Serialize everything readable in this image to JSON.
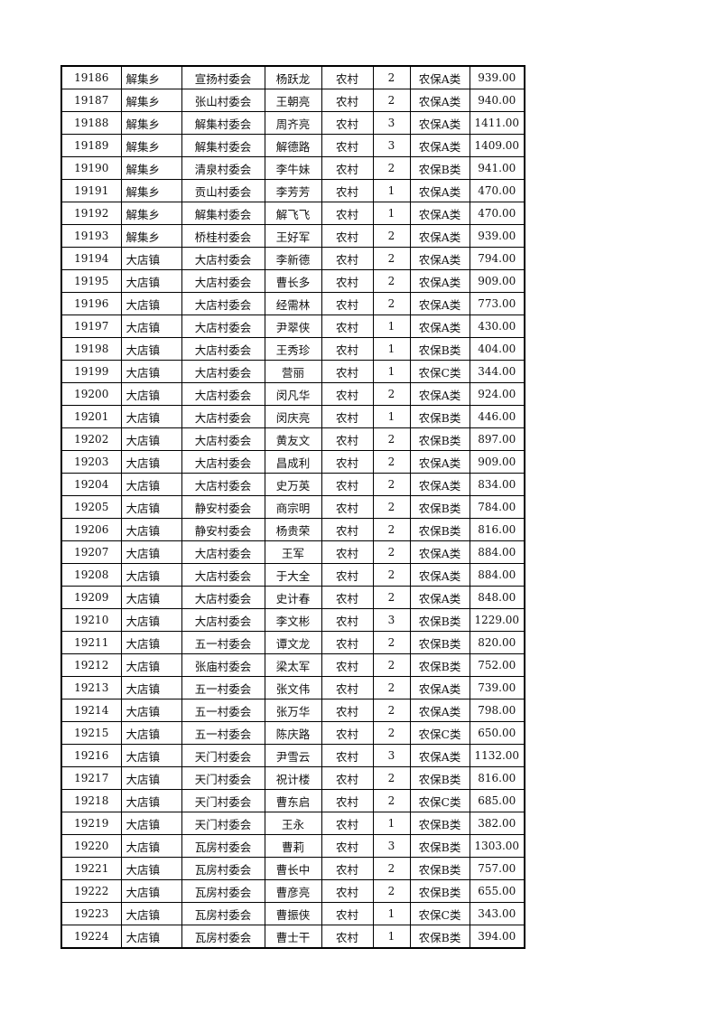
{
  "table": {
    "rows": [
      [
        "19186",
        "解集乡",
        "宣扬村委会",
        "杨跃龙",
        "农村",
        "2",
        "农保A类",
        "939.00"
      ],
      [
        "19187",
        "解集乡",
        "张山村委会",
        "王朝亮",
        "农村",
        "2",
        "农保A类",
        "940.00"
      ],
      [
        "19188",
        "解集乡",
        "解集村委会",
        "周齐亮",
        "农村",
        "3",
        "农保A类",
        "1411.00"
      ],
      [
        "19189",
        "解集乡",
        "解集村委会",
        "解德路",
        "农村",
        "3",
        "农保A类",
        "1409.00"
      ],
      [
        "19190",
        "解集乡",
        "清泉村委会",
        "李牛妹",
        "农村",
        "2",
        "农保B类",
        "941.00"
      ],
      [
        "19191",
        "解集乡",
        "贡山村委会",
        "李芳芳",
        "农村",
        "1",
        "农保A类",
        "470.00"
      ],
      [
        "19192",
        "解集乡",
        "解集村委会",
        "解飞飞",
        "农村",
        "1",
        "农保A类",
        "470.00"
      ],
      [
        "19193",
        "解集乡",
        "桥桂村委会",
        "王好军",
        "农村",
        "2",
        "农保A类",
        "939.00"
      ],
      [
        "19194",
        "大店镇",
        "大店村委会",
        "李新德",
        "农村",
        "2",
        "农保A类",
        "794.00"
      ],
      [
        "19195",
        "大店镇",
        "大店村委会",
        "曹长多",
        "农村",
        "2",
        "农保A类",
        "909.00"
      ],
      [
        "19196",
        "大店镇",
        "大店村委会",
        "经需林",
        "农村",
        "2",
        "农保A类",
        "773.00"
      ],
      [
        "19197",
        "大店镇",
        "大店村委会",
        "尹翠侠",
        "农村",
        "1",
        "农保A类",
        "430.00"
      ],
      [
        "19198",
        "大店镇",
        "大店村委会",
        "王秀珍",
        "农村",
        "1",
        "农保B类",
        "404.00"
      ],
      [
        "19199",
        "大店镇",
        "大店村委会",
        "营丽",
        "农村",
        "1",
        "农保C类",
        "344.00"
      ],
      [
        "19200",
        "大店镇",
        "大店村委会",
        "闵凡华",
        "农村",
        "2",
        "农保A类",
        "924.00"
      ],
      [
        "19201",
        "大店镇",
        "大店村委会",
        "闵庆亮",
        "农村",
        "1",
        "农保B类",
        "446.00"
      ],
      [
        "19202",
        "大店镇",
        "大店村委会",
        "黄友文",
        "农村",
        "2",
        "农保B类",
        "897.00"
      ],
      [
        "19203",
        "大店镇",
        "大店村委会",
        "昌成利",
        "农村",
        "2",
        "农保A类",
        "909.00"
      ],
      [
        "19204",
        "大店镇",
        "大店村委会",
        "史万英",
        "农村",
        "2",
        "农保A类",
        "834.00"
      ],
      [
        "19205",
        "大店镇",
        "静安村委会",
        "商宗明",
        "农村",
        "2",
        "农保B类",
        "784.00"
      ],
      [
        "19206",
        "大店镇",
        "静安村委会",
        "杨贵荣",
        "农村",
        "2",
        "农保B类",
        "816.00"
      ],
      [
        "19207",
        "大店镇",
        "大店村委会",
        "王军",
        "农村",
        "2",
        "农保A类",
        "884.00"
      ],
      [
        "19208",
        "大店镇",
        "大店村委会",
        "于大全",
        "农村",
        "2",
        "农保A类",
        "884.00"
      ],
      [
        "19209",
        "大店镇",
        "大店村委会",
        "史计春",
        "农村",
        "2",
        "农保A类",
        "848.00"
      ],
      [
        "19210",
        "大店镇",
        "大店村委会",
        "李文彬",
        "农村",
        "3",
        "农保B类",
        "1229.00"
      ],
      [
        "19211",
        "大店镇",
        "五一村委会",
        "谭文龙",
        "农村",
        "2",
        "农保B类",
        "820.00"
      ],
      [
        "19212",
        "大店镇",
        "张庙村委会",
        "梁太军",
        "农村",
        "2",
        "农保B类",
        "752.00"
      ],
      [
        "19213",
        "大店镇",
        "五一村委会",
        "张文伟",
        "农村",
        "2",
        "农保A类",
        "739.00"
      ],
      [
        "19214",
        "大店镇",
        "五一村委会",
        "张万华",
        "农村",
        "2",
        "农保A类",
        "798.00"
      ],
      [
        "19215",
        "大店镇",
        "五一村委会",
        "陈庆路",
        "农村",
        "2",
        "农保C类",
        "650.00"
      ],
      [
        "19216",
        "大店镇",
        "天门村委会",
        "尹雪云",
        "农村",
        "3",
        "农保A类",
        "1132.00"
      ],
      [
        "19217",
        "大店镇",
        "天门村委会",
        "祝计楼",
        "农村",
        "2",
        "农保B类",
        "816.00"
      ],
      [
        "19218",
        "大店镇",
        "天门村委会",
        "曹东启",
        "农村",
        "2",
        "农保C类",
        "685.00"
      ],
      [
        "19219",
        "大店镇",
        "天门村委会",
        "王永",
        "农村",
        "1",
        "农保B类",
        "382.00"
      ],
      [
        "19220",
        "大店镇",
        "瓦房村委会",
        "曹莉",
        "农村",
        "3",
        "农保B类",
        "1303.00"
      ],
      [
        "19221",
        "大店镇",
        "瓦房村委会",
        "曹长中",
        "农村",
        "2",
        "农保B类",
        "757.00"
      ],
      [
        "19222",
        "大店镇",
        "瓦房村委会",
        "曹彦亮",
        "农村",
        "2",
        "农保B类",
        "655.00"
      ],
      [
        "19223",
        "大店镇",
        "瓦房村委会",
        "曹振侠",
        "农村",
        "1",
        "农保C类",
        "343.00"
      ],
      [
        "19224",
        "大店镇",
        "瓦房村委会",
        "曹士干",
        "农村",
        "1",
        "农保B类",
        "394.00"
      ]
    ]
  }
}
